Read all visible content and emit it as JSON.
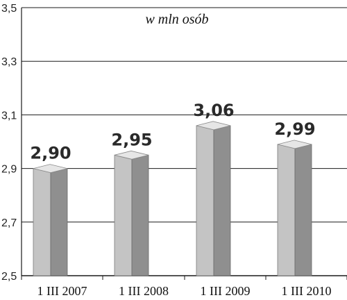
{
  "chart_data": {
    "type": "bar",
    "categories": [
      "1 III 2007",
      "1 III 2008",
      "1 III 2009",
      "1 III 2010"
    ],
    "values": [
      2.9,
      2.95,
      3.06,
      2.99
    ],
    "value_labels": [
      "2,90",
      "2,95",
      "3,06",
      "2,99"
    ],
    "unit_label": "w mln osób",
    "ylim": [
      2.5,
      3.5
    ],
    "yticks": [
      2.5,
      2.7,
      2.9,
      3.1,
      3.3,
      3.5
    ],
    "ytick_labels": [
      "2,5",
      "2,7",
      "2,9",
      "3,1",
      "3,3",
      "3,5"
    ],
    "grid": true
  },
  "colors": {
    "bar_front": "#c4c4c4",
    "bar_side": "#8f8f8f",
    "bar_top": "#e6e6e6",
    "grid": "#1a1a1a"
  }
}
